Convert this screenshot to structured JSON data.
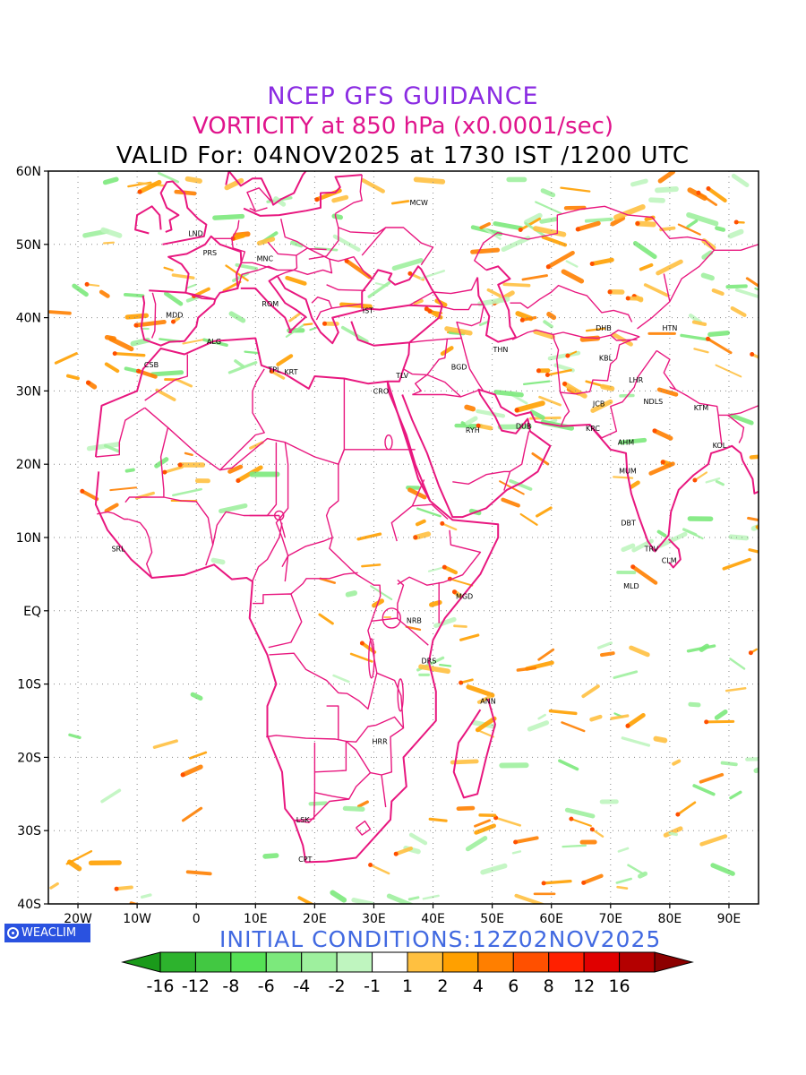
{
  "header": {
    "line1": "NCEP GFS GUIDANCE",
    "line2": "VORTICITY at 850 hPa (x0.0001/sec)",
    "line3": "VALID For: 04NOV2025 at 1730 IST /1200 UTC"
  },
  "footer": {
    "initial_conditions": "INITIAL CONDITIONS:12Z02NOV2025",
    "brand": "WEACLIM"
  },
  "map": {
    "lon_range": [
      -25,
      95
    ],
    "lat_range": [
      -40,
      60
    ],
    "lat_ticks": [
      {
        "value": 60,
        "label": "60N"
      },
      {
        "value": 50,
        "label": "50N"
      },
      {
        "value": 40,
        "label": "40N"
      },
      {
        "value": 30,
        "label": "30N"
      },
      {
        "value": 20,
        "label": "20N"
      },
      {
        "value": 10,
        "label": "10N"
      },
      {
        "value": 0,
        "label": "EQ"
      },
      {
        "value": -10,
        "label": "10S"
      },
      {
        "value": -20,
        "label": "20S"
      },
      {
        "value": -30,
        "label": "30S"
      },
      {
        "value": -40,
        "label": "40S"
      }
    ],
    "lon_ticks": [
      {
        "value": -20,
        "label": "20W"
      },
      {
        "value": -10,
        "label": "10W"
      },
      {
        "value": 0,
        "label": "0"
      },
      {
        "value": 10,
        "label": "10E"
      },
      {
        "value": 20,
        "label": "20E"
      },
      {
        "value": 30,
        "label": "30E"
      },
      {
        "value": 40,
        "label": "40E"
      },
      {
        "value": 50,
        "label": "50E"
      },
      {
        "value": 60,
        "label": "60E"
      },
      {
        "value": 70,
        "label": "70E"
      },
      {
        "value": 80,
        "label": "80E"
      },
      {
        "value": 90,
        "label": "90E"
      }
    ],
    "gridlines": true,
    "boundary_color": "#e8177f",
    "cities": [
      {
        "label": "MCW",
        "lon": 37.6,
        "lat": 55.7
      },
      {
        "label": "LND",
        "lon": -0.1,
        "lat": 51.5
      },
      {
        "label": "PRS",
        "lon": 2.3,
        "lat": 48.9
      },
      {
        "label": "MNC",
        "lon": 11.6,
        "lat": 48.1
      },
      {
        "label": "ROM",
        "lon": 12.5,
        "lat": 41.9
      },
      {
        "label": "MDD",
        "lon": -3.7,
        "lat": 40.4
      },
      {
        "label": "IST",
        "lon": 29.0,
        "lat": 41.0
      },
      {
        "label": "ALG",
        "lon": 3.0,
        "lat": 36.8
      },
      {
        "label": "CSB",
        "lon": -7.6,
        "lat": 33.6
      },
      {
        "label": "TPL",
        "lon": 13.2,
        "lat": 32.9
      },
      {
        "label": "KRT",
        "lon": 16.0,
        "lat": 32.6
      },
      {
        "label": "CRO",
        "lon": 31.2,
        "lat": 30.0
      },
      {
        "label": "TLV",
        "lon": 34.8,
        "lat": 32.1
      },
      {
        "label": "BGD",
        "lon": 44.4,
        "lat": 33.3
      },
      {
        "label": "THN",
        "lon": 51.4,
        "lat": 35.7
      },
      {
        "label": "RYH",
        "lon": 46.7,
        "lat": 24.7
      },
      {
        "label": "DUB",
        "lon": 55.3,
        "lat": 25.2
      },
      {
        "label": "DHB",
        "lon": 68.8,
        "lat": 38.6
      },
      {
        "label": "KBL",
        "lon": 69.2,
        "lat": 34.5
      },
      {
        "label": "HTN",
        "lon": 80.0,
        "lat": 38.6
      },
      {
        "label": "LHR",
        "lon": 74.3,
        "lat": 31.5
      },
      {
        "label": "NDLS",
        "lon": 77.2,
        "lat": 28.6
      },
      {
        "label": "JCB",
        "lon": 68.0,
        "lat": 28.3
      },
      {
        "label": "KTM",
        "lon": 85.3,
        "lat": 27.7
      },
      {
        "label": "KRC",
        "lon": 67.0,
        "lat": 24.9
      },
      {
        "label": "AHM",
        "lon": 72.6,
        "lat": 23.0
      },
      {
        "label": "KOL",
        "lon": 88.4,
        "lat": 22.6
      },
      {
        "label": "MUM",
        "lon": 72.9,
        "lat": 19.1
      },
      {
        "label": "DBT",
        "lon": 73.0,
        "lat": 12.0
      },
      {
        "label": "TRV",
        "lon": 76.9,
        "lat": 8.5
      },
      {
        "label": "CLM",
        "lon": 79.9,
        "lat": 6.9
      },
      {
        "label": "MLD",
        "lon": 73.5,
        "lat": 3.4
      },
      {
        "label": "SRL",
        "lon": -13.2,
        "lat": 8.5
      },
      {
        "label": "MGD",
        "lon": 45.3,
        "lat": 2.0
      },
      {
        "label": "NRB",
        "lon": 36.8,
        "lat": -1.3
      },
      {
        "label": "DRS",
        "lon": 39.3,
        "lat": -6.8
      },
      {
        "label": "ANN",
        "lon": 49.3,
        "lat": -12.3
      },
      {
        "label": "HRR",
        "lon": 31.0,
        "lat": -17.8
      },
      {
        "label": "LSK",
        "lon": 18.0,
        "lat": -28.5
      },
      {
        "label": "CPT",
        "lon": 18.4,
        "lat": -33.9
      }
    ]
  },
  "colorbar": {
    "labels": [
      "-16",
      "-12",
      "-8",
      "-6",
      "-4",
      "-2",
      "-1",
      "1",
      "2",
      "4",
      "6",
      "8",
      "12",
      "16"
    ],
    "colors": [
      "#1a9a1a",
      "#2db32d",
      "#42c842",
      "#55e155",
      "#7ce97c",
      "#9ef09e",
      "#bff5bf",
      "#ffffff",
      "#ffc040",
      "#ffa000",
      "#ff7f00",
      "#ff5000",
      "#ff2000",
      "#e00000",
      "#b40000",
      "#8c0000"
    ]
  }
}
